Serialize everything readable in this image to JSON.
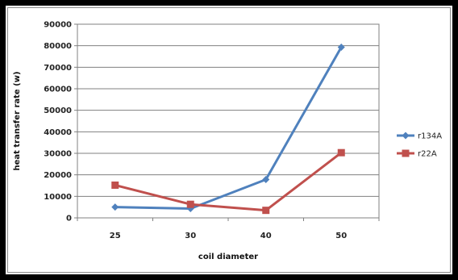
{
  "chart_data": {
    "type": "line",
    "title": "",
    "xlabel": "coil diameter",
    "ylabel": "heat transfer rate (w)",
    "categories": [
      "25",
      "30",
      "40",
      "50"
    ],
    "ylim": [
      0,
      90000
    ],
    "ytick_step": 10000,
    "yticks": [
      "0",
      "10000",
      "20000",
      "30000",
      "40000",
      "50000",
      "60000",
      "70000",
      "80000",
      "90000"
    ],
    "grid": true,
    "legend_position": "right",
    "series": [
      {
        "name": "r134A",
        "values": [
          5000,
          4300,
          17800,
          79300
        ],
        "color": "#4f81bd",
        "marker": "diamond"
      },
      {
        "name": "r22A",
        "values": [
          15200,
          6300,
          3500,
          30300
        ],
        "color": "#c0504d",
        "marker": "square"
      }
    ]
  }
}
